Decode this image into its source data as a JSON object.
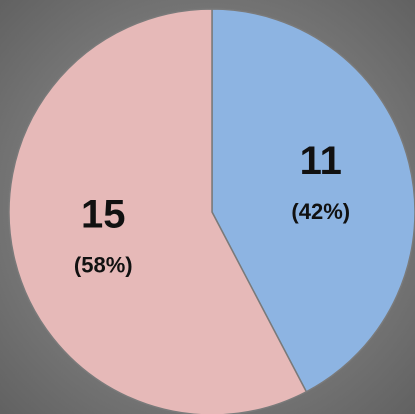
{
  "chart_data": {
    "type": "pie",
    "categories": [
      null,
      null
    ],
    "values": [
      11,
      15
    ],
    "percent_labels": [
      "(42%)",
      "(58%)"
    ],
    "colors": [
      "#8db4e2",
      "#e6b9b8"
    ]
  }
}
